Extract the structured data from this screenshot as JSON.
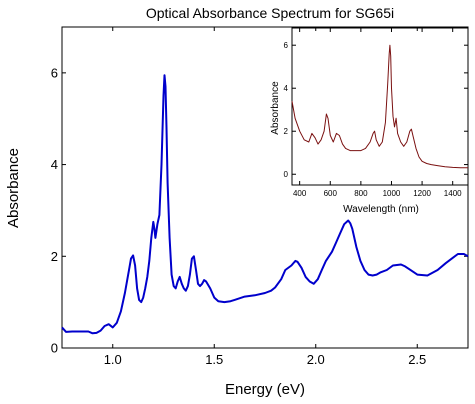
{
  "title": "Optical Absorbance Spectrum for SG65i",
  "chart_data": [
    {
      "type": "line",
      "role": "main",
      "xlabel": "Energy (eV)",
      "ylabel": "Absorbance",
      "xlim": [
        0.75,
        2.75
      ],
      "ylim": [
        0,
        7
      ],
      "xticks": [
        1.0,
        1.5,
        2.0,
        2.5
      ],
      "xtick_labels": [
        "1.0",
        "1.5",
        "2.0",
        "2.5"
      ],
      "yticks": [
        0,
        2,
        4,
        6
      ],
      "ytick_labels": [
        "0",
        "2",
        "4",
        "6"
      ],
      "grid": false,
      "series": [
        {
          "color": "#0000cc",
          "x": [
            0.75,
            0.77,
            0.8,
            0.85,
            0.88,
            0.9,
            0.92,
            0.94,
            0.96,
            0.98,
            1.0,
            1.02,
            1.04,
            1.06,
            1.08,
            1.09,
            1.1,
            1.11,
            1.12,
            1.13,
            1.14,
            1.15,
            1.16,
            1.17,
            1.18,
            1.19,
            1.2,
            1.205,
            1.21,
            1.215,
            1.22,
            1.23,
            1.24,
            1.25,
            1.255,
            1.26,
            1.265,
            1.27,
            1.28,
            1.29,
            1.3,
            1.31,
            1.32,
            1.33,
            1.34,
            1.35,
            1.36,
            1.37,
            1.38,
            1.39,
            1.4,
            1.41,
            1.42,
            1.43,
            1.44,
            1.45,
            1.46,
            1.48,
            1.5,
            1.52,
            1.55,
            1.58,
            1.6,
            1.65,
            1.7,
            1.75,
            1.78,
            1.8,
            1.83,
            1.85,
            1.88,
            1.9,
            1.91,
            1.93,
            1.95,
            1.97,
            1.99,
            2.01,
            2.03,
            2.05,
            2.08,
            2.1,
            2.12,
            2.14,
            2.16,
            2.17,
            2.18,
            2.2,
            2.22,
            2.24,
            2.26,
            2.28,
            2.3,
            2.32,
            2.35,
            2.38,
            2.42,
            2.44,
            2.46,
            2.5,
            2.55,
            2.6,
            2.64,
            2.67,
            2.7,
            2.73,
            2.75
          ],
          "y": [
            0.45,
            0.35,
            0.36,
            0.36,
            0.36,
            0.32,
            0.33,
            0.38,
            0.48,
            0.52,
            0.45,
            0.55,
            0.8,
            1.2,
            1.7,
            1.95,
            2.02,
            1.8,
            1.3,
            1.05,
            1.0,
            1.1,
            1.3,
            1.55,
            1.9,
            2.4,
            2.75,
            2.6,
            2.4,
            2.55,
            2.7,
            2.9,
            4.0,
            5.5,
            5.95,
            5.7,
            4.8,
            3.6,
            2.4,
            1.6,
            1.35,
            1.3,
            1.45,
            1.55,
            1.4,
            1.3,
            1.25,
            1.35,
            1.6,
            1.95,
            2.0,
            1.7,
            1.4,
            1.35,
            1.4,
            1.48,
            1.45,
            1.3,
            1.1,
            1.02,
            1.0,
            1.02,
            1.05,
            1.12,
            1.15,
            1.2,
            1.25,
            1.32,
            1.5,
            1.7,
            1.8,
            1.9,
            1.88,
            1.75,
            1.55,
            1.45,
            1.4,
            1.5,
            1.7,
            1.9,
            2.1,
            2.3,
            2.5,
            2.7,
            2.78,
            2.72,
            2.6,
            2.2,
            1.9,
            1.7,
            1.6,
            1.58,
            1.6,
            1.65,
            1.7,
            1.8,
            1.82,
            1.78,
            1.72,
            1.6,
            1.58,
            1.7,
            1.85,
            1.95,
            2.05,
            2.05,
            2.0
          ]
        }
      ]
    },
    {
      "type": "line",
      "role": "inset",
      "xlabel": "Wavelength (nm)",
      "ylabel": "Absorbance",
      "xlim": [
        350,
        1500
      ],
      "ylim": [
        -0.5,
        6.8
      ],
      "xticks": [
        400,
        600,
        800,
        1000,
        1200,
        1400
      ],
      "xtick_labels": [
        "400",
        "600",
        "800",
        "1000",
        "1200",
        "1400"
      ],
      "yticks": [
        0,
        2,
        4,
        6
      ],
      "ytick_labels": [
        "0",
        "2",
        "4",
        "6"
      ],
      "grid": false,
      "series": [
        {
          "color": "#7a1010",
          "x": [
            350,
            370,
            400,
            430,
            460,
            480,
            500,
            520,
            540,
            560,
            575,
            585,
            600,
            620,
            640,
            660,
            680,
            700,
            730,
            760,
            800,
            830,
            860,
            880,
            890,
            900,
            920,
            940,
            960,
            975,
            985,
            990,
            995,
            1000,
            1010,
            1020,
            1030,
            1040,
            1060,
            1080,
            1100,
            1120,
            1130,
            1140,
            1160,
            1180,
            1200,
            1230,
            1260,
            1300,
            1350,
            1400,
            1450,
            1500
          ],
          "y": [
            3.4,
            2.6,
            2.0,
            1.6,
            1.5,
            1.9,
            1.7,
            1.4,
            1.6,
            2.0,
            2.8,
            2.6,
            1.8,
            1.5,
            1.9,
            1.8,
            1.4,
            1.2,
            1.1,
            1.1,
            1.1,
            1.2,
            1.5,
            1.9,
            2.0,
            1.6,
            1.3,
            1.5,
            2.4,
            4.2,
            5.6,
            6.0,
            5.5,
            4.0,
            2.7,
            2.2,
            2.6,
            1.9,
            1.5,
            1.3,
            1.5,
            2.0,
            2.1,
            1.8,
            1.2,
            0.8,
            0.6,
            0.5,
            0.45,
            0.4,
            0.35,
            0.32,
            0.3,
            0.3
          ]
        }
      ]
    }
  ]
}
